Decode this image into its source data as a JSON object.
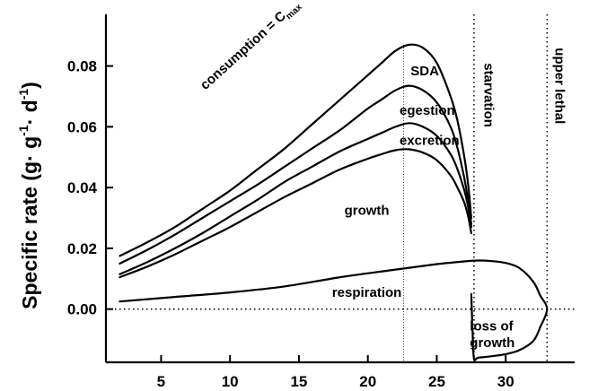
{
  "chart_data": {
    "type": "line",
    "title": "",
    "xlabel": "",
    "ylabel": {
      "prefix": "Specific rate (g· g",
      "sup1": "-1",
      "middle": "· d",
      "sup2": "-1",
      "suffix": ")"
    },
    "xlim": [
      1,
      35
    ],
    "ylim": [
      -0.0175,
      0.097
    ],
    "x_ticks": [
      5,
      10,
      15,
      20,
      25,
      30
    ],
    "y_ticks": [
      0.0,
      0.02,
      0.04,
      0.06,
      0.08
    ],
    "y_tick_labels": [
      "0.00",
      "0.02",
      "0.04",
      "0.06",
      "0.08"
    ],
    "grid": false,
    "reference_lines": {
      "zero_line_y": 0,
      "optimum_x": 22.6,
      "starvation_x": 27.7,
      "upper_lethal_x": 33
    },
    "series": [
      {
        "name": "consumption = Cmax",
        "x": [
          2,
          4,
          6,
          8,
          10,
          12,
          14,
          16,
          18,
          20,
          21,
          22,
          23,
          24,
          25,
          26,
          26.5,
          27,
          27.3,
          27.5
        ],
        "y": [
          0.0175,
          0.022,
          0.027,
          0.033,
          0.039,
          0.046,
          0.053,
          0.061,
          0.069,
          0.077,
          0.081,
          0.085,
          0.087,
          0.086,
          0.081,
          0.07,
          0.062,
          0.05,
          0.04,
          0.03
        ]
      },
      {
        "name": "SDA",
        "x": [
          2,
          4,
          6,
          8,
          10,
          12,
          14,
          16,
          18,
          20,
          21,
          22,
          23,
          24,
          25,
          26,
          26.5,
          27,
          27.3,
          27.5
        ],
        "y": [
          0.015,
          0.0195,
          0.0245,
          0.03,
          0.0355,
          0.041,
          0.047,
          0.053,
          0.059,
          0.066,
          0.069,
          0.072,
          0.0735,
          0.072,
          0.068,
          0.06,
          0.053,
          0.043,
          0.035,
          0.028
        ]
      },
      {
        "name": "egestion",
        "x": [
          2,
          4,
          6,
          8,
          10,
          12,
          14,
          16,
          18,
          20,
          21,
          22,
          23,
          24,
          25,
          26,
          26.5,
          27,
          27.3,
          27.5
        ],
        "y": [
          0.0115,
          0.0155,
          0.02,
          0.025,
          0.0305,
          0.036,
          0.042,
          0.047,
          0.052,
          0.056,
          0.058,
          0.06,
          0.0612,
          0.06,
          0.057,
          0.051,
          0.046,
          0.039,
          0.033,
          0.027
        ]
      },
      {
        "name": "excretion",
        "x": [
          2,
          4,
          6,
          8,
          10,
          12,
          14,
          16,
          18,
          20,
          21,
          22,
          23,
          24,
          25,
          26,
          26.5,
          27,
          27.3,
          27.5
        ],
        "y": [
          0.0105,
          0.014,
          0.018,
          0.0225,
          0.027,
          0.032,
          0.037,
          0.0415,
          0.046,
          0.0495,
          0.051,
          0.0523,
          0.0526,
          0.0515,
          0.049,
          0.044,
          0.04,
          0.035,
          0.03,
          0.025
        ]
      },
      {
        "name": "respiration",
        "x": [
          2,
          6,
          10,
          14,
          18,
          22,
          25,
          27,
          28,
          29,
          30,
          31,
          32,
          32.5,
          33,
          32.5,
          32,
          31,
          30,
          29,
          28,
          27.7,
          27.6,
          27.5
        ],
        "y": [
          0.0025,
          0.004,
          0.0055,
          0.0075,
          0.0105,
          0.013,
          0.0148,
          0.0157,
          0.016,
          0.0158,
          0.0152,
          0.0135,
          0.009,
          0.0045,
          0.0,
          -0.006,
          -0.0105,
          -0.0135,
          -0.0148,
          -0.0155,
          -0.016,
          -0.0163,
          -0.008,
          0.005
        ]
      }
    ],
    "annotations": [
      {
        "text": "consumption = C",
        "sub": "max",
        "x": 8.2,
        "y": 0.072,
        "rotate": -42
      },
      {
        "text": "SDA",
        "x": 23.1,
        "y": 0.077
      },
      {
        "text": "egestion",
        "x": 22.3,
        "y": 0.064
      },
      {
        "text": "excretion",
        "x": 22.3,
        "y": 0.054
      },
      {
        "text": "growth",
        "x": 18.3,
        "y": 0.031
      },
      {
        "text": "respiration",
        "x": 17.4,
        "y": 0.004
      },
      {
        "text": "loss of",
        "x": 27.4,
        "y": -0.007
      },
      {
        "text": "growth",
        "x": 27.4,
        "y": -0.0125
      },
      {
        "text": "starvation",
        "x": 28.45,
        "y": 0.081,
        "rotate": 90
      },
      {
        "text": "upper lethal",
        "x": 33.6,
        "y": 0.086,
        "rotate": 90
      }
    ]
  }
}
